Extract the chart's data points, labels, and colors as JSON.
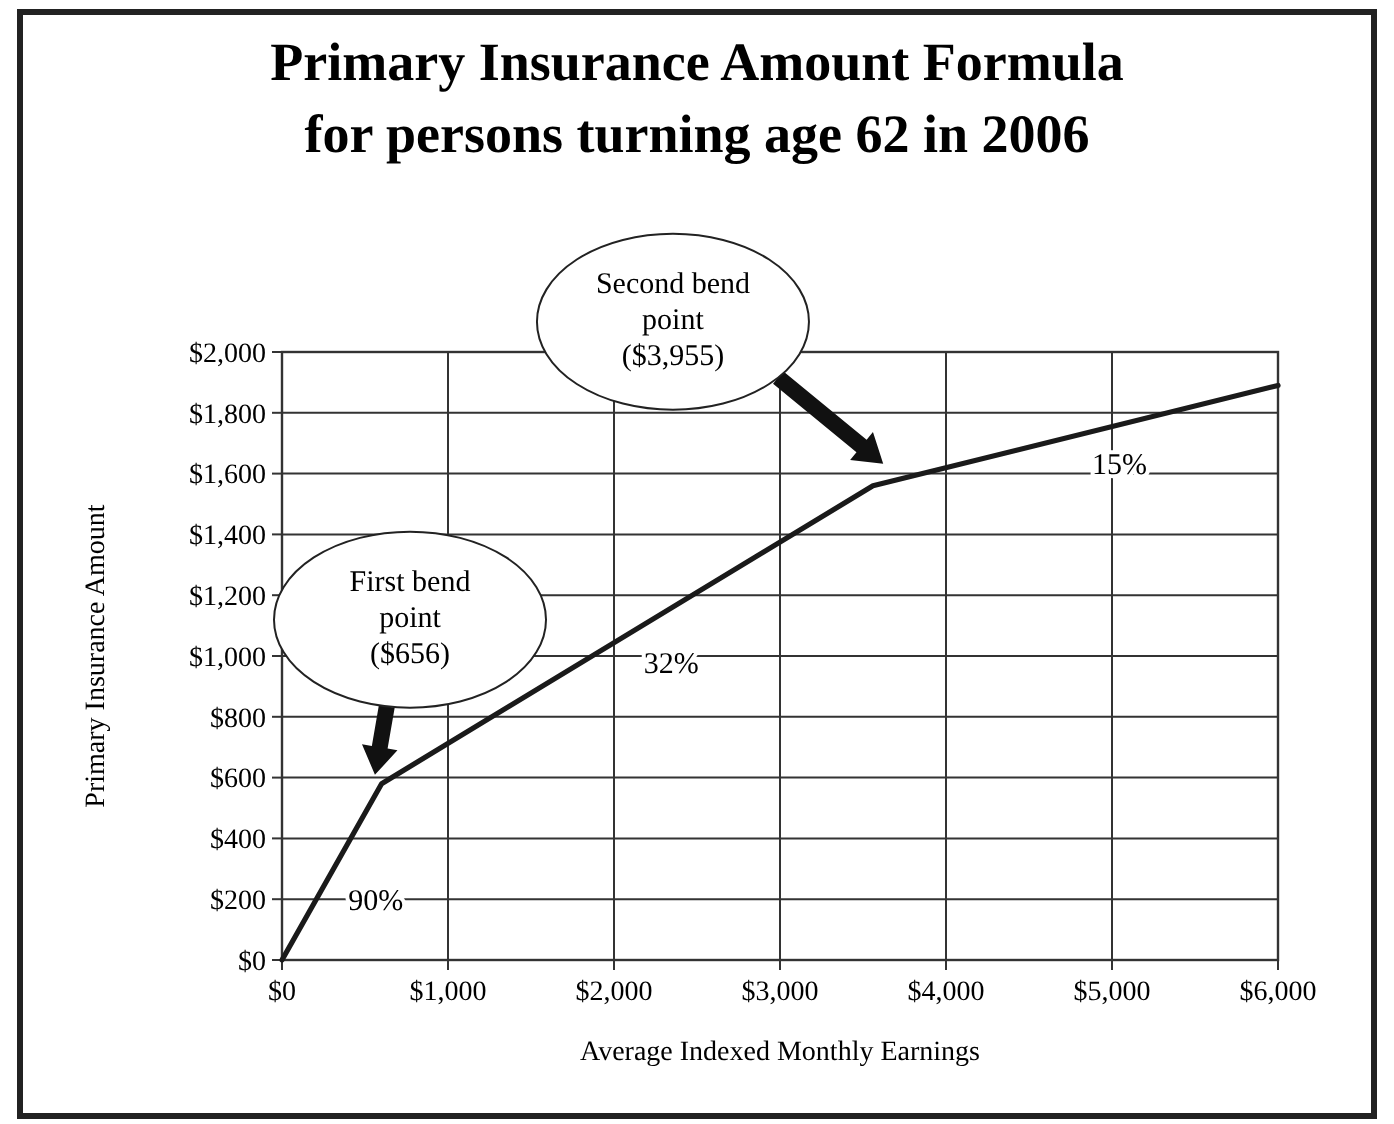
{
  "chart_data": {
    "type": "line",
    "title": "Primary Insurance Amount Formula\nfor persons turning age 62 in 2006",
    "xlabel": "Average Indexed Monthly Earnings",
    "ylabel": "Primary Insurance Amount",
    "x": [
      0,
      600,
      3560,
      6000
    ],
    "series": [
      {
        "color": "#1a1a1a",
        "values": [
          0,
          580,
          1560,
          1890
        ]
      }
    ],
    "xlim": [
      0,
      6000
    ],
    "xticks": [
      {
        "value": 0,
        "label": "$0"
      },
      {
        "value": 1000,
        "label": "$1,000"
      },
      {
        "value": 2000,
        "label": "$2,000"
      },
      {
        "value": 3000,
        "label": "$3,000"
      },
      {
        "value": 4000,
        "label": "$4,000"
      },
      {
        "value": 5000,
        "label": "$5,000"
      },
      {
        "value": 6000,
        "label": "$6,000"
      }
    ],
    "ylim": [
      0,
      2000
    ],
    "yticks": [
      {
        "value": 0,
        "label": "$0"
      },
      {
        "value": 200,
        "label": "$200"
      },
      {
        "value": 400,
        "label": "$400"
      },
      {
        "value": 600,
        "label": "$600"
      },
      {
        "value": 800,
        "label": "$800"
      },
      {
        "value": 1000,
        "label": "$1,000"
      },
      {
        "value": 1200,
        "label": "$1,200"
      },
      {
        "value": 1400,
        "label": "$1,400"
      },
      {
        "value": 1600,
        "label": "$1,600"
      },
      {
        "value": 1800,
        "label": "$1,800"
      },
      {
        "value": 2000,
        "label": "$2,000"
      }
    ],
    "grid": true,
    "marker": "none",
    "line_style": "solid",
    "annotations": [
      "First bend\npoint\n($656)",
      "Second bend\npoint\n($3,955)",
      "90%",
      "32%",
      "15%"
    ]
  }
}
